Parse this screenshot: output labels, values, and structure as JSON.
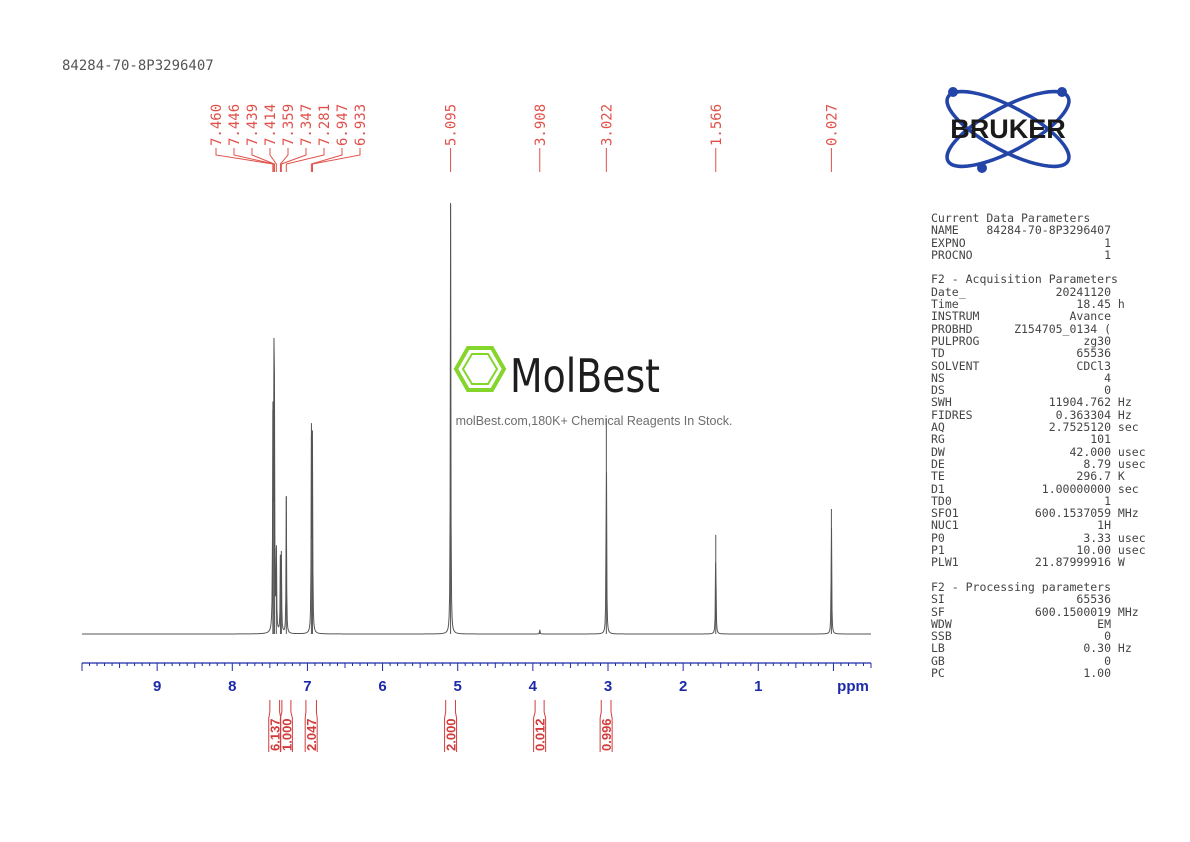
{
  "sample_id": "84284-70-8P3296407",
  "brand": {
    "bruker": "BRUKER",
    "watermark_name": "MolBest",
    "watermark_tagline": "molBest.com,180K+ Chemical Reagents In Stock.",
    "watermark_color": "#7ed321"
  },
  "colors": {
    "peak_labels": "#e0504a",
    "integrals": "#d23c3c",
    "axis": "#1c2aa8",
    "spectrum": "#555555"
  },
  "chart_data": {
    "type": "line",
    "title": "",
    "xlabel": "ppm",
    "x_reversed": true,
    "xlim": [
      10.0,
      -0.5
    ],
    "xticks": [
      "9",
      "8",
      "7",
      "6",
      "5",
      "4",
      "3",
      "2",
      "1"
    ],
    "peak_picks": [
      "7.460",
      "7.446",
      "7.439",
      "7.414",
      "7.359",
      "7.347",
      "7.281",
      "6.947",
      "6.933",
      "5.095",
      "3.908",
      "3.022",
      "1.566",
      "0.027"
    ],
    "peak_heights": [
      {
        "ppm": 7.46,
        "h": 0.52
      },
      {
        "ppm": 7.446,
        "h": 0.53
      },
      {
        "ppm": 7.439,
        "h": 0.45
      },
      {
        "ppm": 7.414,
        "h": 0.2
      },
      {
        "ppm": 7.359,
        "h": 0.18
      },
      {
        "ppm": 7.347,
        "h": 0.17
      },
      {
        "ppm": 7.281,
        "h": 0.32
      },
      {
        "ppm": 6.947,
        "h": 0.46
      },
      {
        "ppm": 6.933,
        "h": 0.44
      },
      {
        "ppm": 5.095,
        "h": 1.0
      },
      {
        "ppm": 3.908,
        "h": 0.01
      },
      {
        "ppm": 3.022,
        "h": 0.5
      },
      {
        "ppm": 1.566,
        "h": 0.23
      },
      {
        "ppm": 0.027,
        "h": 0.29
      }
    ],
    "integrals": [
      {
        "value": "6.137",
        "from": 7.5,
        "to": 7.37
      },
      {
        "value": "1.000",
        "from": 7.34,
        "to": 7.22
      },
      {
        "value": "2.047",
        "from": 7.02,
        "to": 6.88
      },
      {
        "value": "2.000",
        "from": 5.16,
        "to": 5.03
      },
      {
        "value": "0.012",
        "from": 3.97,
        "to": 3.85
      },
      {
        "value": "0.996",
        "from": 3.09,
        "to": 2.96
      }
    ]
  },
  "parameters": [
    [
      "Current Data Parameters"
    ],
    [
      "NAME",
      "84284-70-8P3296407",
      ""
    ],
    [
      "EXPNO",
      "1",
      ""
    ],
    [
      "PROCNO",
      "1",
      ""
    ],
    [],
    [
      "F2 - Acquisition Parameters"
    ],
    [
      "Date_",
      "20241120",
      ""
    ],
    [
      "Time",
      "18.45",
      "h"
    ],
    [
      "INSTRUM",
      "Avance",
      ""
    ],
    [
      "PROBHD",
      "Z154705_0134 (",
      ""
    ],
    [
      "PULPROG",
      "zg30",
      ""
    ],
    [
      "TD",
      "65536",
      ""
    ],
    [
      "SOLVENT",
      "CDCl3",
      ""
    ],
    [
      "NS",
      "4",
      ""
    ],
    [
      "DS",
      "0",
      ""
    ],
    [
      "SWH",
      "11904.762",
      "Hz"
    ],
    [
      "FIDRES",
      "0.363304",
      "Hz"
    ],
    [
      "AQ",
      "2.7525120",
      "sec"
    ],
    [
      "RG",
      "101",
      ""
    ],
    [
      "DW",
      "42.000",
      "usec"
    ],
    [
      "DE",
      "8.79",
      "usec"
    ],
    [
      "TE",
      "296.7",
      "K"
    ],
    [
      "D1",
      "1.00000000",
      "sec"
    ],
    [
      "TD0",
      "1",
      ""
    ],
    [
      "SFO1",
      "600.1537059",
      "MHz"
    ],
    [
      "NUC1",
      "1H",
      ""
    ],
    [
      "P0",
      "3.33",
      "usec"
    ],
    [
      "P1",
      "10.00",
      "usec"
    ],
    [
      "PLW1",
      "21.87999916",
      "W"
    ],
    [],
    [
      "F2 - Processing parameters"
    ],
    [
      "SI",
      "65536",
      ""
    ],
    [
      "SF",
      "600.1500019",
      "MHz"
    ],
    [
      "WDW",
      "EM",
      ""
    ],
    [
      "SSB",
      "0",
      ""
    ],
    [
      "LB",
      "0.30",
      "Hz"
    ],
    [
      "GB",
      "0",
      ""
    ],
    [
      "PC",
      "1.00",
      ""
    ]
  ]
}
